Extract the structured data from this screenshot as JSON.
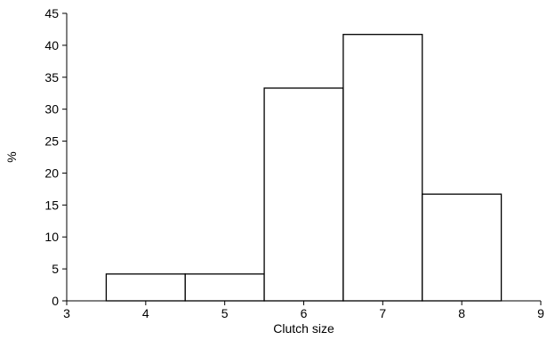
{
  "chart_data": {
    "type": "bar",
    "title": "",
    "xlabel": "Clutch size",
    "ylabel": "%",
    "xlim": [
      3,
      9
    ],
    "ylim": [
      0,
      45
    ],
    "x_ticks": [
      3,
      4,
      5,
      6,
      7,
      8,
      9
    ],
    "y_ticks": [
      0,
      5,
      10,
      15,
      20,
      25,
      30,
      35,
      40,
      45
    ],
    "grid": false,
    "categories": [
      4,
      5,
      6,
      7,
      8
    ],
    "values": [
      4.2,
      4.2,
      33.3,
      41.7,
      16.7
    ]
  }
}
